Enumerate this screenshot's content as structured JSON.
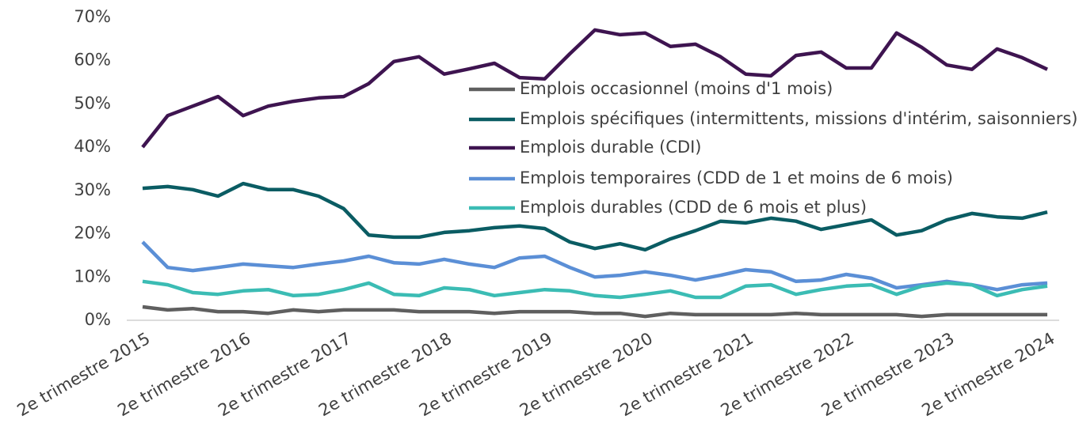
{
  "chart_data": {
    "type": "line",
    "categories": [
      "2e trimestre 2015",
      null,
      null,
      null,
      "2e trimestre 2016",
      null,
      null,
      null,
      "2e trimestre 2017",
      null,
      null,
      null,
      "2e trimestre 2018",
      null,
      null,
      null,
      "2e trimestre 2019",
      null,
      null,
      null,
      "2e trimestre 2020",
      null,
      null,
      null,
      "2e trimestre 2021",
      null,
      null,
      null,
      "2e trimestre 2022",
      null,
      null,
      null,
      "2e trimestre 2023",
      null,
      null,
      null,
      "2e trimestre 2024"
    ],
    "series": [
      {
        "name": "Emplois occasionnel (moins d'1 mois)",
        "color": "#5f5f5f",
        "values": [
          3.1,
          2.4,
          2.7,
          2.0,
          2.0,
          1.6,
          2.4,
          2.0,
          2.4,
          2.4,
          2.4,
          2.0,
          2.0,
          2.0,
          1.6,
          2.0,
          2.0,
          2.0,
          1.6,
          1.6,
          0.9,
          1.6,
          1.3,
          1.3,
          1.3,
          1.3,
          1.6,
          1.3,
          1.3,
          1.3,
          1.3,
          0.9,
          1.3,
          1.3,
          1.3,
          1.3,
          1.3
        ]
      },
      {
        "name": "Emplois spécifiques (intermittents, missions d'intérim, saisonniers)",
        "color": "#0a5c63",
        "values": [
          30.5,
          30.9,
          30.2,
          28.7,
          31.6,
          30.2,
          30.2,
          28.7,
          25.8,
          19.7,
          19.2,
          19.2,
          20.3,
          20.7,
          21.4,
          21.8,
          21.2,
          18.1,
          16.6,
          17.7,
          16.3,
          18.8,
          20.7,
          22.9,
          22.5,
          23.6,
          22.9,
          21.0,
          22.1,
          23.2,
          19.7,
          20.7,
          23.2,
          24.7,
          23.9,
          23.6,
          25.0
        ]
      },
      {
        "name": "Emplois durable (CDI)",
        "color": "#3e1450",
        "values": [
          40.0,
          47.3,
          49.5,
          51.7,
          47.3,
          49.5,
          50.6,
          51.4,
          51.7,
          54.7,
          59.8,
          60.9,
          56.9,
          58.1,
          59.4,
          56.1,
          55.8,
          61.6,
          67.1,
          66.0,
          66.4,
          63.3,
          63.8,
          60.9,
          56.9,
          56.5,
          61.2,
          62.0,
          58.3,
          58.3,
          66.4,
          63.1,
          59.0,
          58.0,
          62.7,
          60.7,
          58.0
        ]
      },
      {
        "name": "Emplois temporaires (CDD de 1 et moins de 6 mois)",
        "color": "#5b8fd6",
        "values": [
          18.1,
          12.2,
          11.5,
          12.2,
          13.0,
          12.6,
          12.2,
          13.0,
          13.7,
          14.8,
          13.3,
          13.0,
          14.1,
          13.0,
          12.2,
          14.4,
          14.8,
          12.2,
          10.0,
          10.4,
          11.2,
          10.4,
          9.3,
          10.4,
          11.7,
          11.2,
          9.0,
          9.3,
          10.6,
          9.7,
          7.5,
          8.2,
          9.0,
          8.2,
          7.1,
          8.2,
          8.6
        ]
      },
      {
        "name": "Emplois durables (CDD de 6 mois et plus)",
        "color": "#3bbcb4",
        "values": [
          9.0,
          8.2,
          6.4,
          6.0,
          6.8,
          7.1,
          5.7,
          6.0,
          7.1,
          8.6,
          6.0,
          5.7,
          7.5,
          7.1,
          5.7,
          6.4,
          7.1,
          6.8,
          5.7,
          5.3,
          6.0,
          6.8,
          5.3,
          5.3,
          7.9,
          8.2,
          6.0,
          7.1,
          7.9,
          8.2,
          6.0,
          7.9,
          8.6,
          8.2,
          5.7,
          7.1,
          7.9
        ]
      }
    ],
    "ylim": [
      0,
      70
    ],
    "yticks": [
      {
        "value": 0,
        "label": "0%"
      },
      {
        "value": 10,
        "label": "10%"
      },
      {
        "value": 20,
        "label": "20%"
      },
      {
        "value": 30,
        "label": "30%"
      },
      {
        "value": 40,
        "label": "40%"
      },
      {
        "value": 50,
        "label": "50%"
      },
      {
        "value": 60,
        "label": "60%"
      },
      {
        "value": 70,
        "label": "70%"
      }
    ],
    "grid": false
  }
}
